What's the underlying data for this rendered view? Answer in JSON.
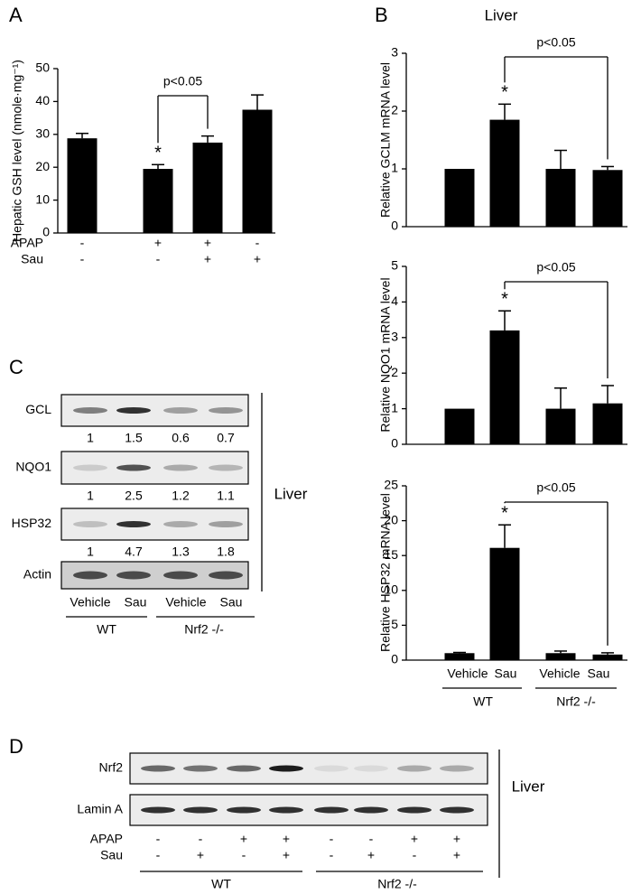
{
  "panel_labels": [
    "A",
    "B",
    "C",
    "D"
  ],
  "chart_data": [
    {
      "type": "bar",
      "y_label": "Hepatic GSH level (nmole·mg⁻¹)",
      "categories": [
        null,
        null,
        null,
        null
      ],
      "values": [
        28.8,
        19.5,
        27.5,
        37.5
      ],
      "errors": [
        1.5,
        1.3,
        2.0,
        4.5
      ],
      "color": "#000000",
      "ylim": [
        0,
        50
      ],
      "yticks": [
        0,
        10,
        20,
        30,
        40,
        50
      ],
      "significance": "*",
      "comparison": "p<0.05",
      "treatments": [
        {
          "name": "APAP",
          "signs": [
            "-",
            "+",
            "+",
            "-"
          ]
        },
        {
          "name": "Sau",
          "signs": [
            "-",
            "-",
            "+",
            "+"
          ]
        }
      ]
    },
    {
      "type": "bar",
      "title": "Liver",
      "y_label": "Relative GCLM mRNA level",
      "categories": [
        null,
        null,
        null,
        null
      ],
      "values": [
        1,
        1.85,
        1.0,
        0.98
      ],
      "errors": [
        null,
        0.27,
        0.32,
        0.06
      ],
      "color": "#000000",
      "ylim": [
        0,
        3
      ],
      "yticks": [
        0,
        1,
        2,
        3
      ],
      "significance": "*",
      "comparison": "p<0.05"
    },
    {
      "type": "bar",
      "y_label": "Relative NQO1 mRNA level",
      "categories": [
        null,
        null,
        null,
        null
      ],
      "values": [
        1,
        3.2,
        1.0,
        1.15
      ],
      "errors": [
        null,
        0.55,
        0.58,
        0.5
      ],
      "color": "#000000",
      "ylim": [
        0,
        5
      ],
      "yticks": [
        0,
        1,
        2,
        3,
        4,
        5
      ],
      "significance": "*",
      "comparison": "p<0.05"
    },
    {
      "type": "bar",
      "y_label": "Relative HSP32 mRNA level",
      "categories": [
        null,
        null,
        null,
        null
      ],
      "values": [
        1.0,
        16.1,
        1.0,
        0.8
      ],
      "errors": [
        0.1,
        3.3,
        0.3,
        0.25
      ],
      "color": "#000000",
      "ylim": [
        0,
        25
      ],
      "yticks": [
        0,
        5,
        10,
        15,
        20,
        25
      ],
      "significance": "*",
      "comparison": "p<0.05"
    }
  ],
  "panel_b_axis": {
    "lanes": [
      "Vehicle",
      "Sau",
      "Vehicle",
      "Sau"
    ],
    "groups": [
      "WT",
      "Nrf2 -/-"
    ]
  },
  "panel_c": {
    "rows": [
      {
        "name": "GCL",
        "values": [
          1,
          1.5,
          0.6,
          0.7
        ]
      },
      {
        "name": "NQO1",
        "values": [
          1,
          2.5,
          1.2,
          1.1
        ]
      },
      {
        "name": "HSP32",
        "values": [
          1,
          4.7,
          1.3,
          1.8
        ]
      },
      {
        "name": "Actin"
      }
    ],
    "tissue": "Liver",
    "lanes": [
      "Vehicle",
      "Sau",
      "Vehicle",
      "Sau"
    ],
    "groups": [
      "WT",
      "Nrf2 -/-"
    ]
  },
  "panel_d": {
    "rows": [
      "Nrf2",
      "Lamin A"
    ],
    "treatments": [
      {
        "name": "APAP",
        "signs": [
          "-",
          "-",
          "+",
          "+",
          "-",
          "-",
          "+",
          "+"
        ]
      },
      {
        "name": "Sau",
        "signs": [
          "-",
          "+",
          "-",
          "+",
          "-",
          "+",
          "-",
          "+"
        ]
      }
    ],
    "tissue": "Liver",
    "groups": [
      "WT",
      "Nrf2 -/-"
    ]
  }
}
